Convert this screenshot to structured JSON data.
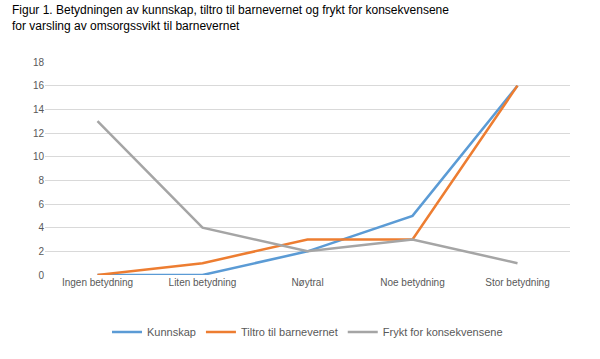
{
  "chart_data": {
    "type": "line",
    "title": "Figur 1. Betydningen av kunnskap, tiltro til barnevernet og frykt for konsekvensene for varsling av omsorgssvikt til barnevernet",
    "categories": [
      "Ingen betydning",
      "Liten betydning",
      "Nøytral",
      "Noe betydning",
      "Stor betydning"
    ],
    "series": [
      {
        "name": "Kunnskap",
        "color": "#5b9bd5",
        "values": [
          0,
          0,
          2,
          5,
          16
        ]
      },
      {
        "name": "Tiltro til barnevernet",
        "color": "#ed7d31",
        "values": [
          0,
          1,
          3,
          3,
          16
        ]
      },
      {
        "name": "Frykt for konsekvensene",
        "color": "#a5a5a5",
        "values": [
          13,
          4,
          2,
          3,
          1
        ]
      }
    ],
    "ylim": [
      0,
      18
    ],
    "yticks": [
      0,
      2,
      4,
      6,
      8,
      10,
      12,
      14,
      16,
      18
    ],
    "grid": true,
    "legend": "bottom"
  }
}
